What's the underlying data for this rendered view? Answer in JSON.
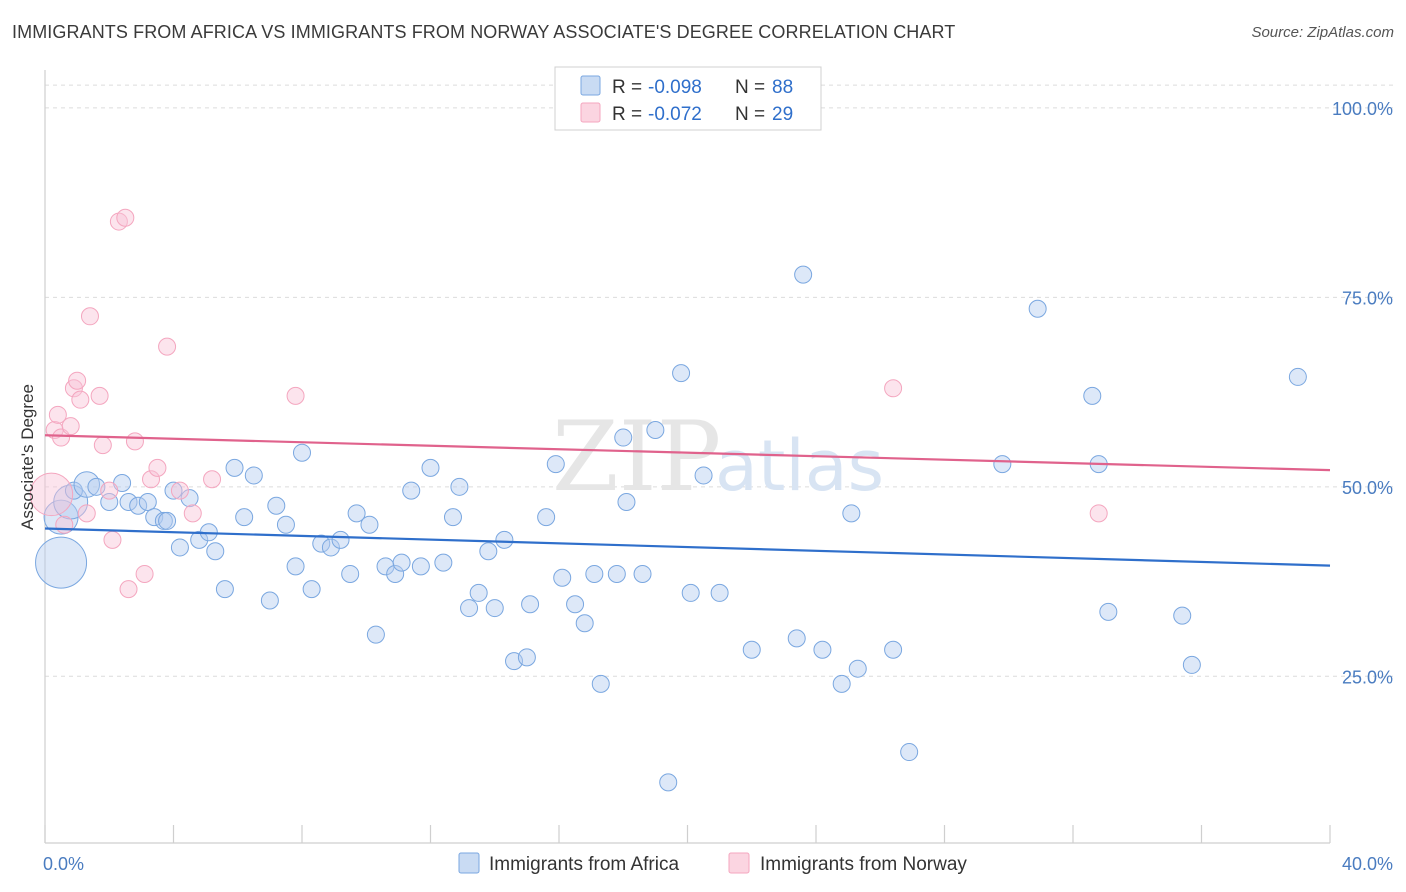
{
  "title": "IMMIGRANTS FROM AFRICA VS IMMIGRANTS FROM NORWAY ASSOCIATE'S DEGREE CORRELATION CHART",
  "source": "Source: ZipAtlas.com",
  "watermark": {
    "part1": "ZIP",
    "part2": "atlas"
  },
  "legend": {
    "r_label": "R =",
    "n_label": "N =",
    "rows": [
      {
        "r": "-0.098",
        "n": "88",
        "color": "#7aa7e0"
      },
      {
        "r": "-0.072",
        "n": "29",
        "color": "#f4a6bf"
      }
    ]
  },
  "chart_data": {
    "type": "scatter",
    "ylabel": "Associate's Degree",
    "xlim": [
      0,
      40
    ],
    "ylim": [
      3,
      105
    ],
    "x_tick_labels": [
      {
        "value": 0,
        "label": "0.0%"
      },
      {
        "value": 40,
        "label": "40.0%"
      }
    ],
    "y_tick_labels": [
      {
        "value": 25,
        "label": "25.0%"
      },
      {
        "value": 50,
        "label": "50.0%"
      },
      {
        "value": 75,
        "label": "75.0%"
      },
      {
        "value": 100,
        "label": "100.0%"
      }
    ],
    "grid": true,
    "series": [
      {
        "name": "Immigrants from Africa",
        "color": "#7aa7e0",
        "trend": {
          "x": [
            0,
            40
          ],
          "y": [
            44.5,
            39.6
          ],
          "color": "#2f6fcb"
        },
        "points": [
          [
            0.5,
            40,
            3
          ],
          [
            0.5,
            46,
            2
          ],
          [
            0.8,
            48,
            2
          ],
          [
            0.9,
            49.5,
            1
          ],
          [
            1.3,
            50.3,
            1.5
          ],
          [
            1.6,
            50,
            1
          ],
          [
            2.0,
            48,
            1
          ],
          [
            2.4,
            50.5,
            1
          ],
          [
            2.6,
            48,
            1
          ],
          [
            2.9,
            47.5,
            1
          ],
          [
            3.2,
            48,
            1
          ],
          [
            3.4,
            46,
            1
          ],
          [
            3.7,
            45.5,
            1
          ],
          [
            4.0,
            49.5,
            1
          ],
          [
            4.2,
            42,
            1
          ],
          [
            4.5,
            48.5,
            1
          ],
          [
            4.8,
            43,
            1
          ],
          [
            5.1,
            44,
            1
          ],
          [
            5.3,
            41.5,
            1
          ],
          [
            5.6,
            36.5,
            1
          ],
          [
            5.9,
            52.5,
            1
          ],
          [
            6.2,
            46,
            1
          ],
          [
            6.5,
            51.5,
            1
          ],
          [
            7.0,
            35,
            1
          ],
          [
            7.2,
            47.5,
            1
          ],
          [
            7.5,
            45,
            1
          ],
          [
            7.8,
            39.5,
            1
          ],
          [
            8.0,
            54.5,
            1
          ],
          [
            8.3,
            36.5,
            1
          ],
          [
            8.6,
            42.5,
            1
          ],
          [
            8.9,
            42,
            1
          ],
          [
            9.2,
            43,
            1
          ],
          [
            9.5,
            38.5,
            1
          ],
          [
            9.7,
            46.5,
            1
          ],
          [
            10.1,
            45,
            1
          ],
          [
            10.3,
            30.5,
            1
          ],
          [
            10.6,
            39.5,
            1
          ],
          [
            10.9,
            38.5,
            1
          ],
          [
            11.1,
            40,
            1
          ],
          [
            11.4,
            49.5,
            1
          ],
          [
            11.7,
            39.5,
            1
          ],
          [
            12.0,
            52.5,
            1
          ],
          [
            12.4,
            40,
            1
          ],
          [
            12.7,
            46,
            1
          ],
          [
            12.9,
            50,
            1
          ],
          [
            13.2,
            34,
            1
          ],
          [
            13.5,
            36,
            1
          ],
          [
            13.8,
            41.5,
            1
          ],
          [
            14.0,
            34,
            1
          ],
          [
            14.3,
            43,
            1
          ],
          [
            14.6,
            27,
            1
          ],
          [
            15.0,
            27.5,
            1
          ],
          [
            15.1,
            34.5,
            1
          ],
          [
            15.6,
            46,
            1
          ],
          [
            15.9,
            53,
            1
          ],
          [
            16.1,
            38,
            1
          ],
          [
            16.5,
            34.5,
            1
          ],
          [
            16.8,
            32,
            1
          ],
          [
            17.1,
            38.5,
            1
          ],
          [
            17.3,
            24,
            1
          ],
          [
            17.8,
            38.5,
            1
          ],
          [
            18.0,
            56.5,
            1
          ],
          [
            18.1,
            48,
            1
          ],
          [
            18.6,
            38.5,
            1
          ],
          [
            19.0,
            57.5,
            1
          ],
          [
            19.4,
            11,
            1
          ],
          [
            19.8,
            65,
            1
          ],
          [
            20.1,
            36,
            1
          ],
          [
            20.5,
            51.5,
            1
          ],
          [
            21.0,
            36,
            1
          ],
          [
            22.0,
            28.5,
            1
          ],
          [
            23.4,
            30,
            1
          ],
          [
            23.6,
            78,
            1
          ],
          [
            24.2,
            28.5,
            1
          ],
          [
            24.8,
            24,
            1
          ],
          [
            25.1,
            46.5,
            1
          ],
          [
            25.3,
            26,
            1
          ],
          [
            26.4,
            28.5,
            1
          ],
          [
            26.9,
            15,
            1
          ],
          [
            29.8,
            53,
            1
          ],
          [
            30.9,
            73.5,
            1
          ],
          [
            32.6,
            62,
            1
          ],
          [
            32.8,
            53,
            1
          ],
          [
            33.1,
            33.5,
            1
          ],
          [
            35.4,
            33,
            1
          ],
          [
            35.7,
            26.5,
            1
          ],
          [
            39.0,
            64.5,
            1
          ],
          [
            3.8,
            45.5,
            1
          ]
        ]
      },
      {
        "name": "Immigrants from Norway",
        "color": "#f4a6bf",
        "trend": {
          "x": [
            0,
            40
          ],
          "y": [
            56.8,
            52.2
          ],
          "color": "#e0628c"
        },
        "points": [
          [
            0.2,
            49,
            2.5
          ],
          [
            0.3,
            57.5,
            1
          ],
          [
            0.4,
            59.5,
            1
          ],
          [
            0.5,
            56.5,
            1
          ],
          [
            0.6,
            45,
            1
          ],
          [
            0.8,
            58,
            1
          ],
          [
            0.9,
            63,
            1
          ],
          [
            1.0,
            64,
            1
          ],
          [
            1.1,
            61.5,
            1
          ],
          [
            1.3,
            46.5,
            1
          ],
          [
            1.4,
            72.5,
            1
          ],
          [
            1.7,
            62,
            1
          ],
          [
            1.8,
            55.5,
            1
          ],
          [
            2.1,
            43,
            1
          ],
          [
            2.3,
            85,
            1
          ],
          [
            2.5,
            85.5,
            1
          ],
          [
            2.6,
            36.5,
            1
          ],
          [
            2.8,
            56,
            1
          ],
          [
            3.1,
            38.5,
            1
          ],
          [
            3.3,
            51,
            1
          ],
          [
            3.5,
            52.5,
            1
          ],
          [
            3.8,
            68.5,
            1
          ],
          [
            4.2,
            49.5,
            1
          ],
          [
            4.6,
            46.5,
            1
          ],
          [
            5.2,
            51,
            1
          ],
          [
            7.8,
            62,
            1
          ],
          [
            26.4,
            63,
            1
          ],
          [
            32.8,
            46.5,
            1
          ],
          [
            2.0,
            49.5,
            1
          ]
        ]
      }
    ]
  },
  "bottom_legend": [
    {
      "label": "Immigrants from Africa",
      "color": "#7aa7e0"
    },
    {
      "label": "Immigrants from Norway",
      "color": "#f4a6bf"
    }
  ]
}
